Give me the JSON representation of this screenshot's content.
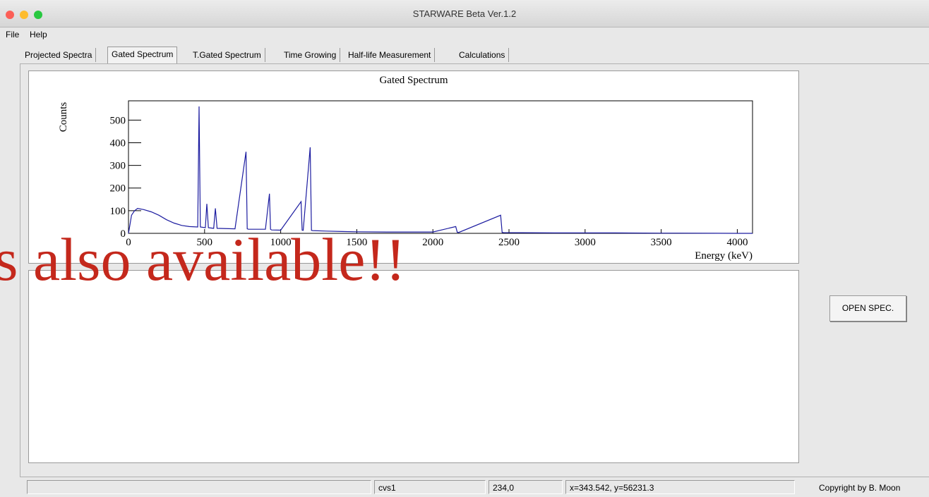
{
  "window": {
    "title": "STARWARE Beta Ver.1.2"
  },
  "menu": [
    "File",
    "Help"
  ],
  "tabs": [
    "Projected Spectra",
    "Gated Spectrum",
    "T.Gated Spectrum",
    "Time Growing",
    "Half-life Measurement",
    "Calculations"
  ],
  "chart_data": {
    "type": "line",
    "title": "Gated Spectrum",
    "x_label": "Energy (keV)",
    "y_label": "Counts",
    "x": [
      0,
      10,
      20,
      40,
      60,
      100,
      150,
      200,
      250,
      300,
      350,
      400,
      455,
      464,
      472,
      505,
      515,
      525,
      560,
      571,
      582,
      700,
      772,
      780,
      788,
      900,
      926,
      933,
      940,
      1000,
      1134,
      1141,
      1148,
      1194,
      1202,
      1210,
      1300,
      1400,
      1500,
      1700,
      2000,
      2150,
      2160,
      2170,
      2445,
      2455,
      2465,
      2800,
      3200,
      3500,
      3600,
      4000,
      4100
    ],
    "series": [
      {
        "name": "spectrum",
        "color": "#1c1ca0",
        "values": [
          0,
          40,
          80,
          100,
          110,
          105,
          95,
          80,
          60,
          45,
          35,
          30,
          28,
          560,
          28,
          25,
          130,
          25,
          22,
          110,
          22,
          20,
          360,
          20,
          18,
          18,
          175,
          18,
          15,
          14,
          140,
          14,
          13,
          380,
          13,
          12,
          10,
          8,
          7,
          6,
          6,
          30,
          5,
          4,
          80,
          4,
          3,
          2,
          2,
          1,
          1,
          0,
          0
        ]
      }
    ],
    "xlim": [
      0,
      4100
    ],
    "ylim": [
      0,
      585
    ],
    "xticks": [
      0,
      500,
      1000,
      1500,
      2000,
      2500,
      3000,
      3500,
      4000
    ],
    "yticks": [
      0,
      100,
      200,
      300,
      400,
      500
    ]
  },
  "button": "OPEN SPEC.",
  "status": [
    "cvs1",
    "234,0",
    "x=343.542, y=56231.3"
  ],
  "copyright": "Copyright by B. Moon",
  "overlay_text": "s also available!!"
}
